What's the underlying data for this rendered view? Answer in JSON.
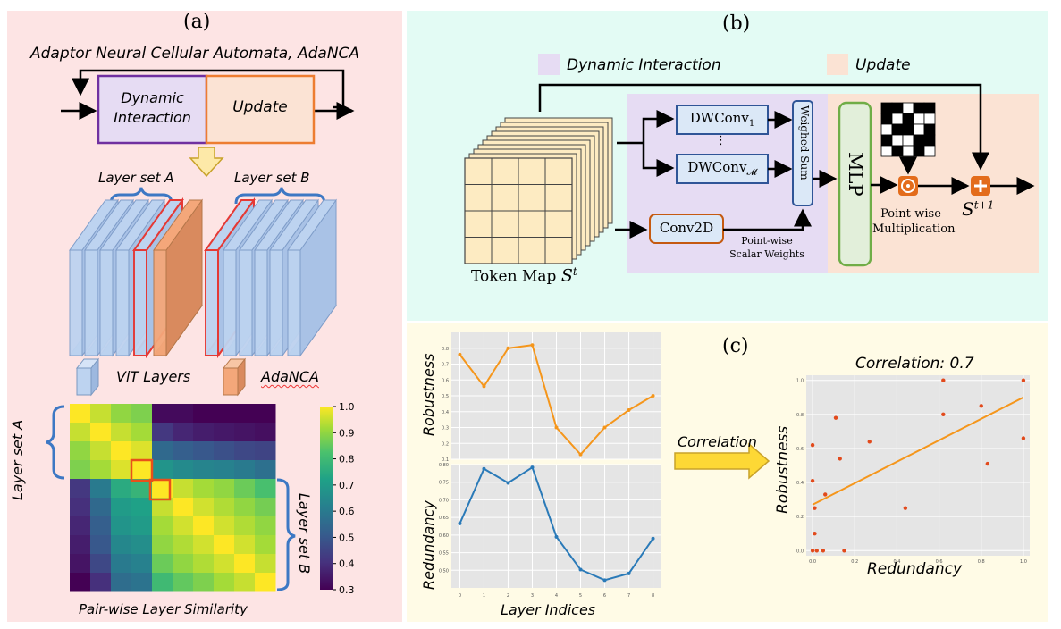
{
  "panel_a": {
    "label": "(a)",
    "title": "Adaptor Neural Cellular Automata, AdaNCA",
    "box_dynamic": [
      "Dynamic",
      "Interaction"
    ],
    "box_update": "Update",
    "layer_set_a": "Layer set A",
    "layer_set_b": "Layer set B",
    "legend_vit": "ViT Layers",
    "legend_adanca": "AdaNCA",
    "heatmap_left_label": "Layer set A",
    "heatmap_right_label": "Layer set B",
    "heatmap_caption": "Pair-wise Layer Similarity",
    "colorbar_ticks": [
      "1.0",
      "0.9",
      "0.8",
      "0.7",
      "0.6",
      "0.5",
      "0.4",
      "0.3"
    ],
    "colors": {
      "dynamic_border": "#7030a0",
      "update_border": "#ed7d31",
      "vit": "#bdd3f0",
      "adanca": "#f4a77a",
      "highlight": "#e53935"
    }
  },
  "panel_b": {
    "label": "(b)",
    "legend_dynamic": "Dynamic Interaction",
    "legend_update": "Update",
    "dwconv_1": "DWConv",
    "dwconv_1_sub": "1",
    "dwconv_m": "DWConv",
    "dwconv_m_sub": "𝓜",
    "ellipsis": "⋮",
    "conv2d": "Conv2D",
    "weighed_sum": "Weighed Sum",
    "scalar_weights": [
      "Point-wise",
      "Scalar Weights"
    ],
    "mlp": "MLP",
    "pointwise_mult": [
      "Point-wise",
      "Multiplication"
    ],
    "token_map": "Token Map",
    "state_t": "S",
    "state_t_sup": "t",
    "state_next": "S",
    "state_next_sup": "t+1",
    "odot": "⊙",
    "plus": "+",
    "colors": {
      "dynamic_bg": "#e6dcf3",
      "update_bg": "#fbe3d4",
      "conv_border": "#2f5597",
      "conv_fill": "#dbe8f7",
      "conv2d_border": "#c55a11",
      "mlp_border": "#70ad47",
      "mlp_fill": "#e2efda"
    }
  },
  "panel_c": {
    "label": "(c)",
    "robustness_ylabel": "Robustness",
    "redundancy_ylabel": "Redundancy",
    "layer_indices": "Layer Indices",
    "correlation_arrow": "Correlation",
    "scatter_title": "Correlation: 0.7",
    "scatter_xlabel": "Redundancy",
    "scatter_ylabel": "Robustness"
  },
  "chart_data": [
    {
      "type": "line",
      "x": [
        0,
        1,
        2,
        3,
        4,
        5,
        6,
        7,
        8
      ],
      "series": [
        {
          "values": [
            0.76,
            0.56,
            0.8,
            0.82,
            0.3,
            0.13,
            0.3,
            0.41,
            0.5
          ]
        }
      ],
      "ylabel": "Robustness",
      "ylim": [
        0.1,
        0.9
      ],
      "yticks": [
        "0.1",
        "0.2",
        "0.3",
        "0.4",
        "0.5",
        "0.6",
        "0.7",
        "0.8"
      ],
      "xticks": [],
      "grid": true,
      "color": "#f5961b"
    },
    {
      "type": "line",
      "x": [
        0,
        1,
        2,
        3,
        4,
        5,
        6,
        7,
        8
      ],
      "series": [
        {
          "values": [
            0.633,
            0.788,
            0.748,
            0.792,
            0.595,
            0.502,
            0.472,
            0.491,
            0.59
          ]
        }
      ],
      "ylabel": "Redundancy",
      "xlabel": "Layer Indices",
      "ylim": [
        0.45,
        0.8
      ],
      "yticks": [
        "0.50",
        "0.55",
        "0.60",
        "0.65",
        "0.70",
        "0.75",
        "0.80"
      ],
      "xticks": [
        "0",
        "1",
        "2",
        "3",
        "4",
        "5",
        "6",
        "7",
        "8"
      ],
      "grid": true,
      "color": "#2a7ab8"
    },
    {
      "type": "scatter",
      "title": "Correlation: 0.7",
      "xlabel": "Redundancy",
      "ylabel": "Robustness",
      "xlim": [
        -0.03,
        1.03
      ],
      "ylim": [
        -0.03,
        1.03
      ],
      "xticks": [
        "0.0",
        "0.2",
        "0.4",
        "0.6",
        "0.8",
        "1.0"
      ],
      "yticks": [
        "0.0",
        "0.2",
        "0.4",
        "0.6",
        "0.8",
        "1.0"
      ],
      "points": [
        [
          0.0,
          0.0
        ],
        [
          0.0,
          0.41
        ],
        [
          0.0,
          0.62
        ],
        [
          0.01,
          0.25
        ],
        [
          0.01,
          0.1
        ],
        [
          0.02,
          0.0
        ],
        [
          0.05,
          0.0
        ],
        [
          0.06,
          0.33
        ],
        [
          0.11,
          0.78
        ],
        [
          0.13,
          0.54
        ],
        [
          0.15,
          0.0
        ],
        [
          0.27,
          0.64
        ],
        [
          0.44,
          0.25
        ],
        [
          0.62,
          1.0
        ],
        [
          0.62,
          0.8
        ],
        [
          0.8,
          0.85
        ],
        [
          0.83,
          0.51
        ],
        [
          1.0,
          1.0
        ],
        [
          1.0,
          0.66
        ]
      ],
      "fit": [
        [
          0.0,
          0.27
        ],
        [
          1.0,
          0.9
        ]
      ],
      "grid": true,
      "point_color": "#e24a1c",
      "fit_color": "#f5961b"
    },
    {
      "type": "heatmap",
      "rows": 10,
      "cols": 10,
      "values": [
        [
          1.0,
          0.95,
          0.9,
          0.88,
          0.32,
          0.32,
          0.3,
          0.3,
          0.3,
          0.3
        ],
        [
          0.95,
          1.0,
          0.95,
          0.92,
          0.42,
          0.38,
          0.36,
          0.35,
          0.34,
          0.33
        ],
        [
          0.9,
          0.95,
          1.0,
          0.97,
          0.55,
          0.52,
          0.5,
          0.48,
          0.46,
          0.45
        ],
        [
          0.88,
          0.92,
          0.97,
          1.0,
          0.68,
          0.65,
          0.63,
          0.62,
          0.6,
          0.57
        ],
        [
          0.42,
          0.6,
          0.75,
          0.78,
          1.0,
          0.95,
          0.92,
          0.9,
          0.86,
          0.82
        ],
        [
          0.4,
          0.55,
          0.7,
          0.72,
          0.95,
          1.0,
          0.96,
          0.93,
          0.9,
          0.87
        ],
        [
          0.38,
          0.52,
          0.68,
          0.7,
          0.92,
          0.96,
          1.0,
          0.96,
          0.93,
          0.9
        ],
        [
          0.36,
          0.5,
          0.64,
          0.66,
          0.9,
          0.93,
          0.96,
          1.0,
          0.96,
          0.92
        ],
        [
          0.34,
          0.46,
          0.6,
          0.62,
          0.86,
          0.9,
          0.93,
          0.96,
          1.0,
          0.95
        ],
        [
          0.3,
          0.4,
          0.56,
          0.58,
          0.8,
          0.85,
          0.88,
          0.92,
          0.95,
          1.0
        ]
      ],
      "vmin": 0.3,
      "vmax": 1.0
    }
  ]
}
